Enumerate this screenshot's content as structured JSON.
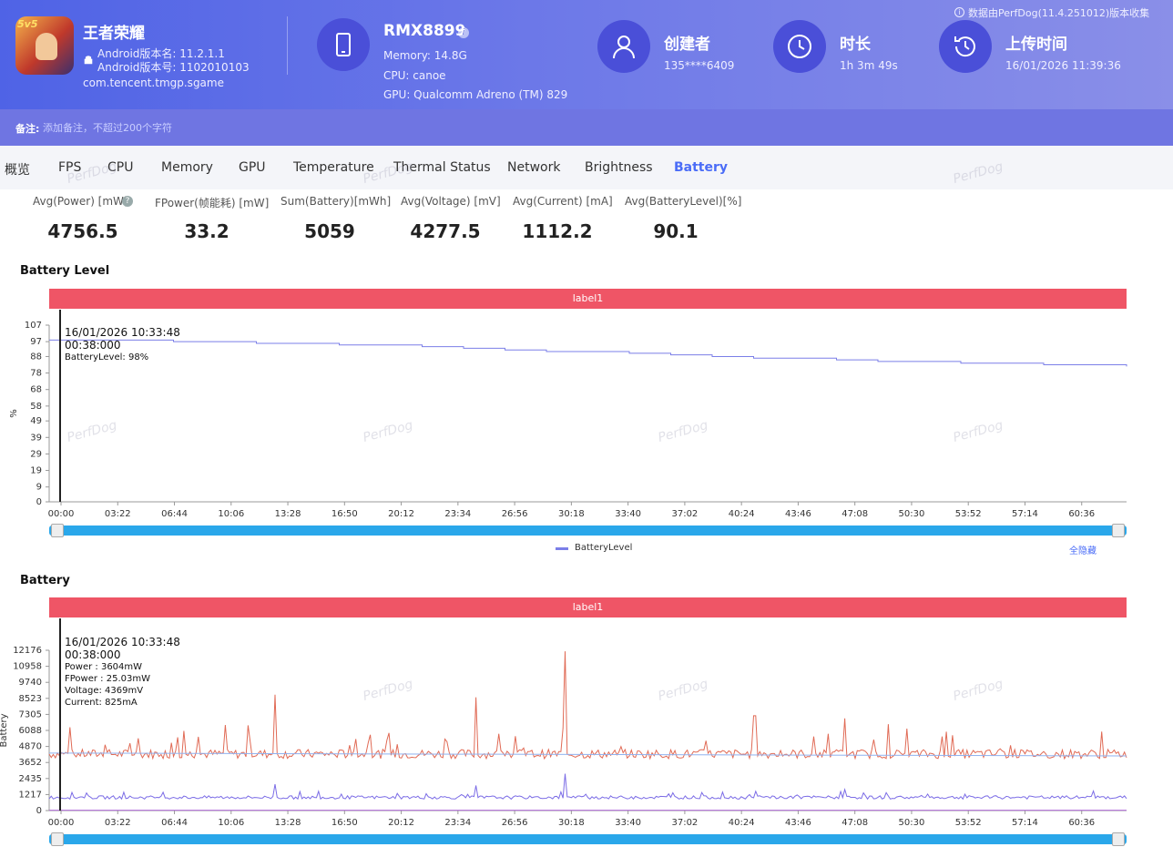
{
  "app": {
    "name": "王者荣耀",
    "version_name": "Android版本名: 11.2.1.1",
    "version_code": "Android版本号: 1102010103",
    "package": "com.tencent.tmgp.sgame",
    "badge": "5v5"
  },
  "device": {
    "model": "RMX8899",
    "memory": "Memory: 14.8G",
    "cpu": "CPU: canoe",
    "gpu": "GPU: Qualcomm Adreno (TM) 829"
  },
  "creator": {
    "label": "创建者",
    "value": "135****6409"
  },
  "duration": {
    "label": "时长",
    "value": "1h 3m 49s"
  },
  "upload": {
    "label": "上传时间",
    "value": "16/01/2026 11:39:36"
  },
  "source_note": "数据由PerfDog(11.4.251012)版本收集",
  "note": {
    "label": "备注:",
    "placeholder": "添加备注，不超过200个字符"
  },
  "tabs": [
    "概览",
    "FPS",
    "CPU",
    "Memory",
    "GPU",
    "Temperature",
    "Thermal Status",
    "Network",
    "Brightness",
    "Battery"
  ],
  "active_tab": "Battery",
  "metrics": [
    {
      "label": "Avg(Power) [mW]",
      "value": "4756.5"
    },
    {
      "label": "FPower(帧能耗) [mW]",
      "value": "33.2"
    },
    {
      "label": "Sum(Battery)[mWh]",
      "value": "5059"
    },
    {
      "label": "Avg(Voltage) [mV]",
      "value": "4277.5"
    },
    {
      "label": "Avg(Current) [mA]",
      "value": "1112.2"
    },
    {
      "label": "Avg(BatteryLevel)[%]",
      "value": "90.1"
    }
  ],
  "watermark": "PerfDog",
  "battery_level": {
    "title": "Battery Level",
    "label_bar": "label1",
    "tooltip": {
      "datetime": "16/01/2026 10:33:48",
      "elapsed": "00:38:000",
      "line1": "BatteryLevel: 98%"
    },
    "legend": "BatteryLevel",
    "hide_all": "全隐藏"
  },
  "battery": {
    "title": "Battery",
    "label_bar": "label1",
    "tooltip": {
      "datetime": "16/01/2026 10:33:48",
      "elapsed": "00:38:000",
      "line1": "Power   : 3604mW",
      "line2": "FPower : 25.03mW",
      "line3": "Voltage: 4369mV",
      "line4": "Current: 825mA"
    }
  },
  "colors": {
    "accent": "#4a6cf7",
    "label_bar": "#ef5566",
    "power": "#e06a55",
    "current": "#7b6ce6",
    "voltage": "#8fb2f0",
    "level": "#7b7fe8"
  },
  "chart_data": [
    {
      "type": "line",
      "title": "Battery Level",
      "ylabel": "%",
      "ylim": [
        0,
        107
      ],
      "yticks": [
        "0",
        "9",
        "19",
        "29",
        "39",
        "49",
        "58",
        "68",
        "78",
        "88",
        "97",
        "107"
      ],
      "xticks": [
        "00:00",
        "03:22",
        "06:44",
        "10:06",
        "13:28",
        "16:50",
        "20:12",
        "23:34",
        "26:56",
        "30:18",
        "33:40",
        "37:02",
        "40:24",
        "43:46",
        "47:08",
        "50:30",
        "53:52",
        "57:14",
        "60:36"
      ],
      "x_minutes": [
        0,
        10,
        19,
        28,
        37,
        46,
        55,
        64
      ],
      "series": [
        {
          "name": "BatteryLevel",
          "values": [
            98,
            97,
            95,
            92,
            89,
            86,
            84,
            82
          ]
        }
      ]
    },
    {
      "type": "line",
      "title": "Battery",
      "ylabel": "Battery",
      "ylim": [
        0,
        12176
      ],
      "yticks": [
        "0",
        "1217",
        "2435",
        "3652",
        "4870",
        "6088",
        "7305",
        "8523",
        "9740",
        "10958",
        "12176"
      ],
      "xticks": [
        "00:00",
        "03:22",
        "06:44",
        "10:06",
        "13:28",
        "16:50",
        "20:12",
        "23:34",
        "26:56",
        "30:18",
        "33:40",
        "37:02",
        "40:24",
        "43:46",
        "47:08",
        "50:30",
        "53:52",
        "57:14",
        "60:36"
      ],
      "series": [
        {
          "name": "Power",
          "peaks": [
            [
              10.5,
              6500
            ],
            [
              13.4,
              8800
            ],
            [
              25.4,
              8600
            ],
            [
              30.6,
              12100
            ],
            [
              41.9,
              7200
            ],
            [
              47.3,
              7000
            ]
          ],
          "baseline": 4300
        },
        {
          "name": "Voltage",
          "values_start": 4369,
          "values_end": 4150
        },
        {
          "name": "Current",
          "peaks": [
            [
              13.4,
              2000
            ],
            [
              25.4,
              1900
            ],
            [
              30.6,
              2800
            ]
          ],
          "baseline": 1000
        }
      ]
    }
  ]
}
